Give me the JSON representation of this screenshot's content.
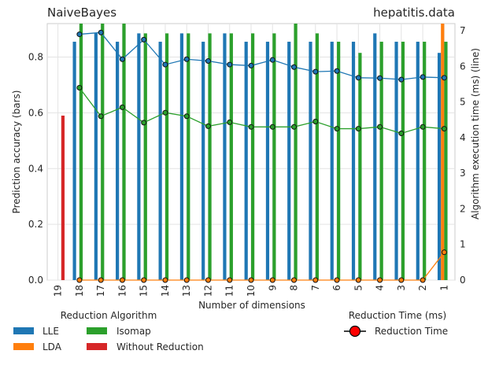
{
  "chart_data": {
    "type": "bar",
    "title_left": "NaiveBayes",
    "title_right": "hepatitis.data",
    "xlabel": "Number of dimensions",
    "ylabel_left": "Prediction accuracy (bars)",
    "ylabel_right": "Algorithm execution time (ms) (line)",
    "categories": [
      "19",
      "18",
      "17",
      "16",
      "15",
      "14",
      "13",
      "12",
      "11",
      "10",
      "9",
      "8",
      "7",
      "6",
      "5",
      "4",
      "3",
      "2",
      "1"
    ],
    "ylim_left": [
      0,
      0.92
    ],
    "ylim_right": [
      0,
      7.2
    ],
    "yticks_left": [
      "0.0",
      "0.2",
      "0.4",
      "0.6",
      "0.8"
    ],
    "yticks_right": [
      "0",
      "1",
      "2",
      "3",
      "4",
      "5",
      "6",
      "7"
    ],
    "grid": true,
    "bar_series": [
      {
        "name": "LLE",
        "color": "#1f77b4",
        "values": [
          null,
          0.855,
          0.885,
          0.855,
          0.885,
          0.855,
          0.885,
          0.855,
          0.885,
          0.855,
          0.855,
          0.855,
          0.855,
          0.855,
          0.855,
          0.885,
          0.855,
          0.855,
          0.815
        ]
      },
      {
        "name": "LDA",
        "color": "#ff7f0e",
        "values": [
          null,
          null,
          null,
          null,
          null,
          null,
          null,
          null,
          null,
          null,
          null,
          null,
          null,
          null,
          null,
          null,
          null,
          null,
          0.93
        ]
      },
      {
        "name": "Isomap",
        "color": "#2ca02c",
        "values": [
          null,
          0.93,
          0.93,
          0.93,
          0.885,
          0.885,
          0.885,
          0.885,
          0.885,
          0.885,
          0.885,
          0.93,
          0.885,
          0.855,
          0.815,
          0.855,
          0.855,
          0.855,
          0.855
        ]
      },
      {
        "name": "Without Reduction",
        "color": "#d62728",
        "values": [
          0.59,
          null,
          null,
          null,
          null,
          null,
          null,
          null,
          null,
          null,
          null,
          null,
          null,
          null,
          null,
          null,
          null,
          null,
          null
        ]
      }
    ],
    "line_series": [
      {
        "name": "LLE",
        "color": "#1f77b4",
        "values": [
          null,
          6.9,
          6.95,
          6.2,
          6.75,
          6.05,
          6.2,
          6.15,
          6.05,
          6.02,
          6.18,
          5.98,
          5.85,
          5.87,
          5.68,
          5.67,
          5.63,
          5.7,
          5.68
        ]
      },
      {
        "name": "Isomap",
        "color": "#2ca02c",
        "values": [
          null,
          5.4,
          4.6,
          4.85,
          4.42,
          4.7,
          4.6,
          4.32,
          4.43,
          4.3,
          4.3,
          4.3,
          4.45,
          4.25,
          4.25,
          4.3,
          4.12,
          4.3,
          4.25
        ]
      },
      {
        "name": "LDA",
        "color": "#ff7f0e",
        "values": [
          null,
          0,
          0,
          0,
          0,
          0,
          0,
          0,
          0,
          0,
          0,
          0,
          0,
          0,
          0,
          0,
          0,
          0,
          0.78
        ]
      }
    ],
    "legend_algo": {
      "title": "Reduction Algorithm",
      "items": [
        {
          "label": "LLE",
          "color": "#1f77b4"
        },
        {
          "label": "LDA",
          "color": "#ff7f0e"
        },
        {
          "label": "Isomap",
          "color": "#2ca02c"
        },
        {
          "label": "Without Reduction",
          "color": "#d62728"
        }
      ]
    },
    "legend_time": {
      "title": "Reduction Time (ms)",
      "label": "Reduction Time",
      "marker_color": "#ff0000"
    }
  }
}
